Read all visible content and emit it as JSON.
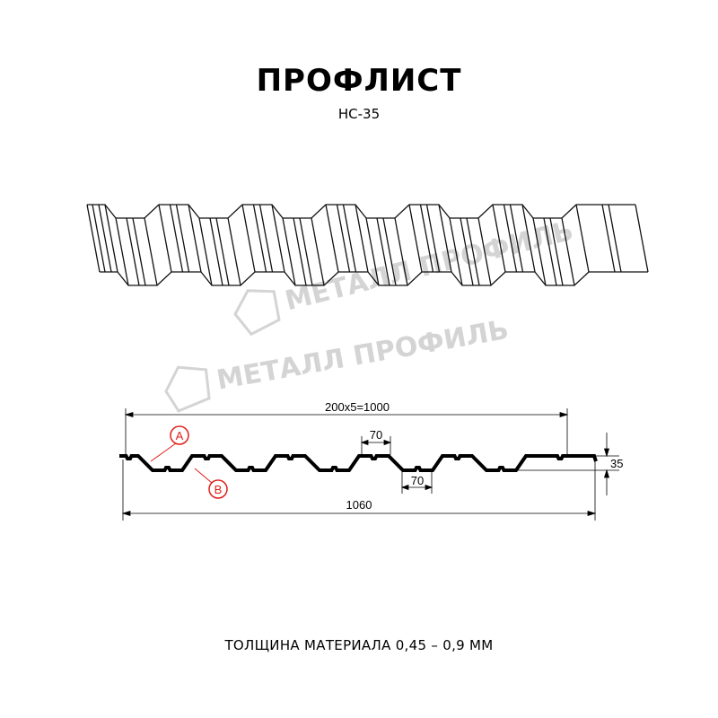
{
  "header": {
    "title": "ПРОФЛИСТ",
    "model": "НС-35"
  },
  "watermark": {
    "text": "МЕТАЛЛ ПРОФИЛЬ"
  },
  "drawing": {
    "dim_pitch": "200x5=1000",
    "dim_total": "1060",
    "dim_height": "35",
    "dim_top_flat": "70",
    "dim_bottom_flat": "70",
    "label_a": "A",
    "label_b": "B"
  },
  "footer": {
    "thickness": "ТОЛЩИНА МАТЕРИАЛА 0,45 – 0,9 ММ"
  },
  "colors": {
    "profile": "#000000",
    "callout": "#e0201b",
    "watermark": "#d4d4d4"
  }
}
